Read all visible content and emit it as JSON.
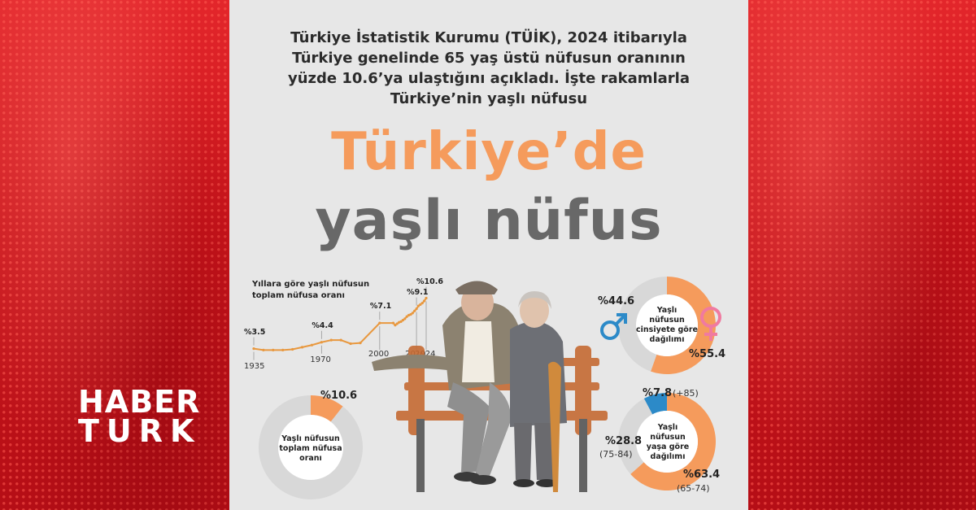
{
  "brand": {
    "line1": "HABER",
    "line2": "TURK"
  },
  "intro": {
    "line1": "Türkiye İstatistik Kurumu (TÜİK), 2024 itibarıyla",
    "line2": "Türkiye genelinde 65 yaş üstü nüfusun oranının",
    "line3": "yüzde 10.6’ya ulaştığını açıkladı. İşte rakamlarla",
    "line4": "Türkiye’nin yaşlı nüfusu"
  },
  "title": {
    "line1": "Türkiye’de",
    "line2": "yaşlı nüfus"
  },
  "colors": {
    "accent": "#f59b5c",
    "grey_title": "#686868",
    "brand_red": "#d71920",
    "blue": "#2c8ac8",
    "pink": "#f07aa0",
    "donut_rest": "#d8d8d8"
  },
  "chart_data": [
    {
      "type": "line",
      "title_line1": "Yıllara göre yaşlı nüfusun",
      "title_line2": "toplam nüfusa oranı",
      "x": [
        1935,
        1940,
        1945,
        1950,
        1955,
        1960,
        1965,
        1970,
        1975,
        1980,
        1985,
        1990,
        2000,
        2007,
        2008,
        2009,
        2010,
        2011,
        2012,
        2013,
        2014,
        2015,
        2016,
        2017,
        2018,
        2019,
        2020,
        2021,
        2022,
        2023,
        2024
      ],
      "values": [
        3.5,
        3.3,
        3.3,
        3.3,
        3.4,
        3.7,
        4.0,
        4.4,
        4.7,
        4.7,
        4.2,
        4.3,
        7.1,
        7.1,
        6.8,
        7.0,
        7.2,
        7.3,
        7.5,
        7.7,
        8.0,
        8.2,
        8.3,
        8.5,
        8.8,
        9.1,
        9.5,
        9.7,
        9.9,
        10.2,
        10.6
      ],
      "point_labels": [
        {
          "x": 1935,
          "text": "%3.5"
        },
        {
          "x": 1970,
          "text": "%4.4"
        },
        {
          "x": 2000,
          "text": "%7.1"
        },
        {
          "x": 2019,
          "text": "%9.1"
        },
        {
          "x": 2024,
          "text": "%10.6"
        }
      ],
      "tick_labels": [
        "1935",
        "1970",
        "2000",
        "2019",
        "2024"
      ],
      "ylim": [
        3,
        11
      ]
    },
    {
      "type": "pie",
      "label_line1": "Yaşlı nüfusun",
      "label_line2": "toplam nüfusa",
      "label_line3": "oranı",
      "slices": [
        {
          "label": "%10.6",
          "value": 10.6,
          "color": "#f59b5c"
        },
        {
          "label": "",
          "value": 89.4,
          "color": "#d8d8d8"
        }
      ]
    },
    {
      "type": "pie",
      "label_line1": "Yaşlı",
      "label_line2": "nüfusun",
      "label_line3": "cinsiyete göre",
      "label_line4": "dağılımı",
      "slices": [
        {
          "label": "%55.4",
          "value": 55.4,
          "color": "#f59b5c"
        },
        {
          "label": "%44.6",
          "value": 44.6,
          "color": "#d8d8d8"
        }
      ]
    },
    {
      "type": "pie",
      "label_line1": "Yaşlı",
      "label_line2": "nüfusun",
      "label_line3": "yaşa göre",
      "label_line4": "dağılımı",
      "slices": [
        {
          "label": "%7.8",
          "range": "(+85)",
          "value": 7.8,
          "color": "#2c8ac8"
        },
        {
          "label": "%63.4",
          "range": "(65-74)",
          "value": 63.4,
          "color": "#f59b5c"
        },
        {
          "label": "%28.8",
          "range": "(75-84)",
          "value": 28.8,
          "color": "#d8d8d8"
        }
      ]
    }
  ],
  "icons": {
    "male": "male-symbol-icon",
    "female": "female-symbol-icon"
  }
}
